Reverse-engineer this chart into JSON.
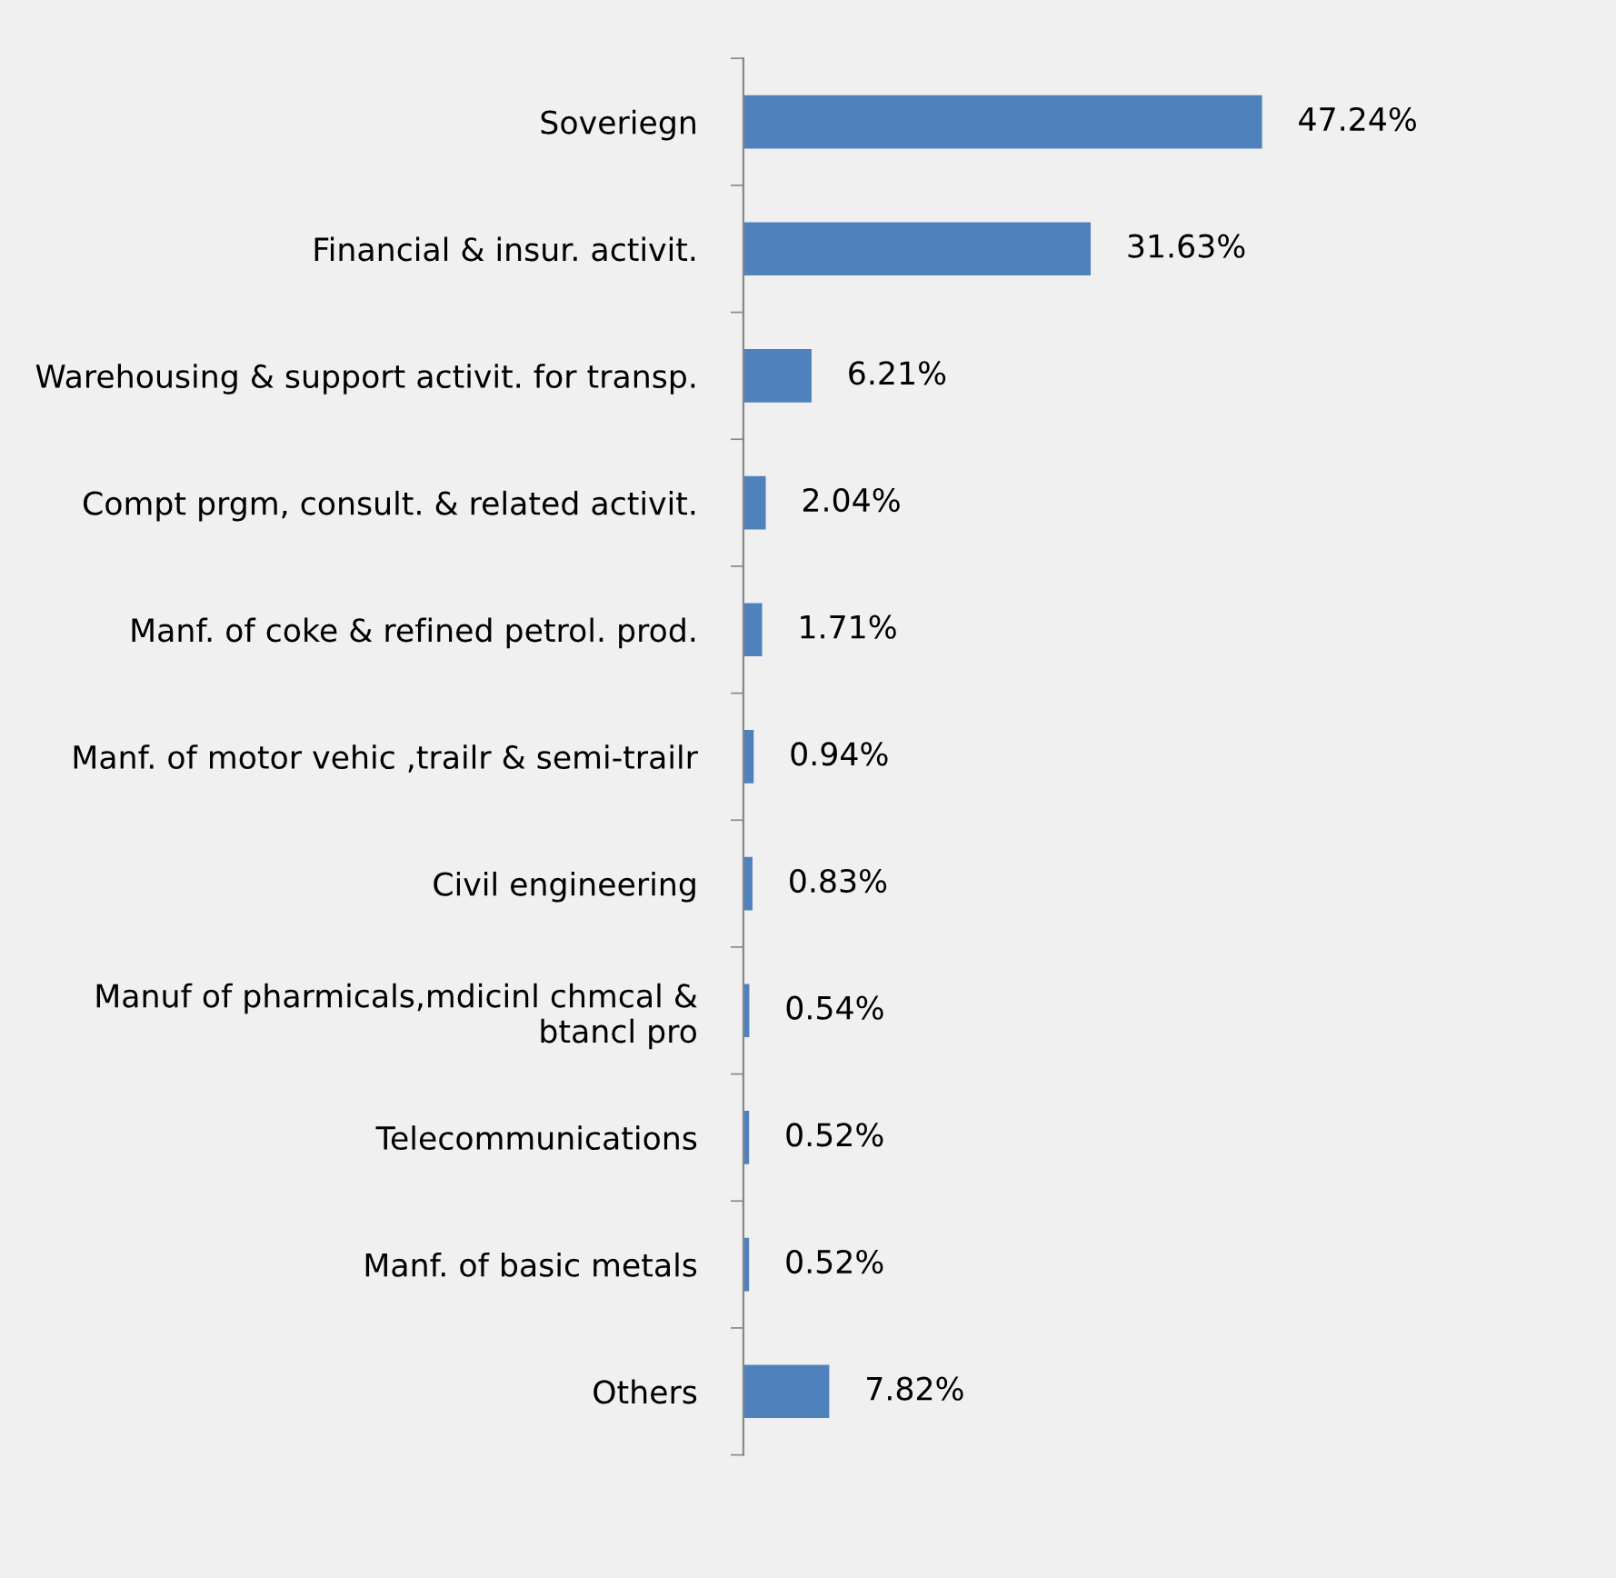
{
  "chart_data": {
    "type": "bar",
    "orientation": "horizontal",
    "categories": [
      "Soveriegn",
      "Financial & insur. activit.",
      "Warehousing & support activit. for transp.",
      "Compt prgm, consult. & related activit.",
      "Manf. of coke & refined petrol. prod.",
      "Manf. of motor vehic ,trailr & semi-trailr",
      "Civil engineering",
      "Manuf of pharmicals,mdicinl chmcal &\nbtancl pro",
      "Telecommunications",
      "Manf. of basic metals",
      "Others"
    ],
    "values": [
      47.24,
      31.63,
      6.21,
      2.04,
      1.71,
      0.94,
      0.83,
      0.54,
      0.52,
      0.52,
      7.82
    ],
    "value_labels": [
      "47.24%",
      "31.63%",
      "6.21%",
      "2.04%",
      "1.71%",
      "0.94%",
      "0.83%",
      "0.54%",
      "0.52%",
      "0.52%",
      "7.82%"
    ],
    "color": "#4f81bd",
    "grid": false,
    "legend": false
  }
}
